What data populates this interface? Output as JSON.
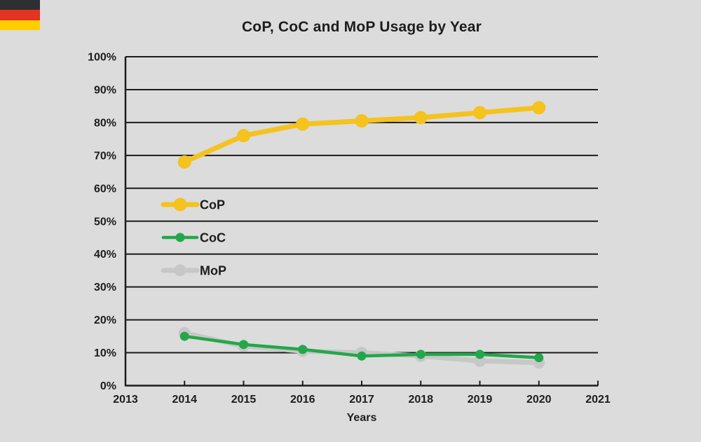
{
  "flag": {
    "label": "germany-flag",
    "colors": [
      "#2D2F33",
      "#E23323",
      "#FFCE00"
    ]
  },
  "chart_data": {
    "type": "line",
    "title": "CoP, CoC and MoP Usage by Year",
    "xlabel": "Years",
    "ylabel": "",
    "x": [
      2014,
      2015,
      2016,
      2017,
      2018,
      2019,
      2020
    ],
    "series": [
      {
        "name": "CoP",
        "color": "#F5C21E",
        "values": [
          68,
          76,
          79.5,
          80.5,
          81.5,
          83,
          84.5
        ]
      },
      {
        "name": "CoC",
        "color": "#22A74A",
        "values": [
          15,
          12.5,
          11,
          9,
          9.5,
          9.5,
          8.5
        ]
      },
      {
        "name": "MoP",
        "color": "#C7C7C7",
        "values": [
          16,
          12,
          10.5,
          10,
          9,
          7.5,
          7
        ]
      }
    ],
    "xlim": [
      2013,
      2021
    ],
    "ylim": [
      0,
      100
    ],
    "x_tick_labels": [
      "2013",
      "2014",
      "2015",
      "2016",
      "2017",
      "2018",
      "2019",
      "2020",
      "2021"
    ],
    "y_tick_labels": [
      "0%",
      "10%",
      "20%",
      "30%",
      "40%",
      "50%",
      "60%",
      "70%",
      "80%",
      "90%",
      "100%"
    ],
    "grid": true,
    "grid_color": "#1C1C1C",
    "background_color": "#DCDCDC",
    "legend_position": "inside-left"
  }
}
